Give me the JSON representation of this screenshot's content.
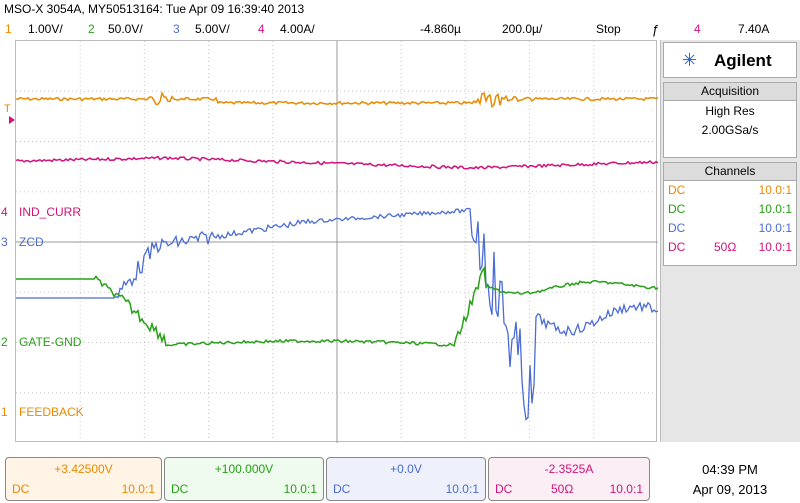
{
  "title": "MSO-X 3054A, MY50513164: Tue Apr 09 16:39:40 2013",
  "channel_bar": {
    "ch1": {
      "num": "1",
      "scale": "1.00V/"
    },
    "ch2": {
      "num": "2",
      "scale": "50.0V/"
    },
    "ch3": {
      "num": "3",
      "scale": "5.00V/"
    },
    "ch4": {
      "num": "4",
      "scale": "4.00A/"
    },
    "delay": "-4.860µ",
    "timebase": "200.0µ/",
    "run_state": "Stop",
    "trig_source": "4",
    "trig_level": "7.40A"
  },
  "colors": {
    "ch1": "#e88a00",
    "ch2": "#26a016",
    "ch3": "#4a6cd4",
    "ch4": "#d0127a"
  },
  "trace_labels": {
    "ch4": "IND_CURR",
    "ch3": "ZCD",
    "ch2": "GATE-GND",
    "ch1": "FEEDBACK",
    "trig_marker": "T"
  },
  "markers": {
    "ch4": "4",
    "ch3": "3",
    "ch2": "2",
    "ch1": "1"
  },
  "panel": {
    "brand": "Agilent",
    "acq_header": "Acquisition",
    "acq_mode": "High Res",
    "acq_rate": "2.00GSa/s",
    "ch_header": "Channels",
    "channels": [
      {
        "coupling": "DC",
        "imp": "",
        "probe": "10.0:1"
      },
      {
        "coupling": "DC",
        "imp": "",
        "probe": "10.0:1"
      },
      {
        "coupling": "DC",
        "imp": "",
        "probe": "10.0:1"
      },
      {
        "coupling": "DC",
        "imp": "50Ω",
        "probe": "10.0:1"
      }
    ]
  },
  "bottom": [
    {
      "value": "+3.42500V",
      "coupling": "DC",
      "imp": "",
      "probe": "10.0:1"
    },
    {
      "value": "+100.000V",
      "coupling": "DC",
      "imp": "",
      "probe": "10.0:1"
    },
    {
      "value": "+0.0V",
      "coupling": "DC",
      "imp": "",
      "probe": "10.0:1"
    },
    {
      "value": "-2.3525A",
      "coupling": "DC",
      "imp": "50Ω",
      "probe": "10.0:1"
    }
  ],
  "clock": {
    "time": "04:39 PM",
    "date": "Apr 09, 2013"
  }
}
